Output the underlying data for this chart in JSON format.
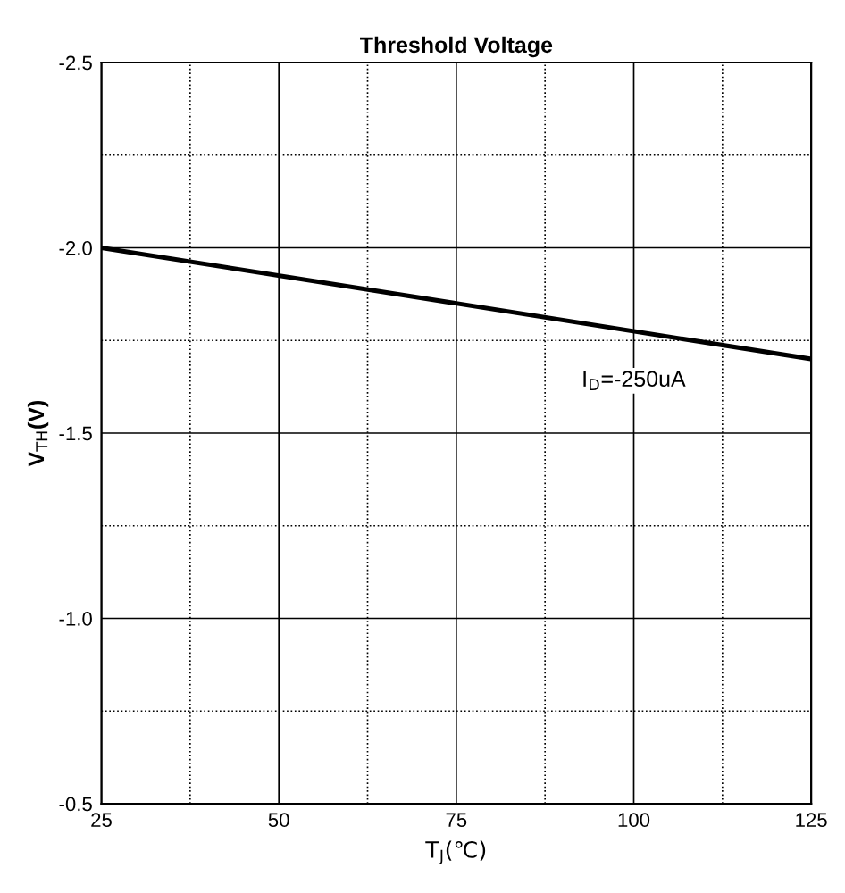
{
  "chart_data": {
    "type": "line",
    "title": "Threshold Voltage",
    "xlabel": "T$_{J}$(℃)",
    "ylabel": "V$_{TH}$(V)",
    "x": [
      25,
      125
    ],
    "series": [
      {
        "name": "I$_{D}$=-250uA",
        "color": "#000000",
        "values": [
          -2.0,
          -1.7
        ]
      }
    ],
    "xlim": [
      25,
      125
    ],
    "xticks": [
      25,
      {
        "value": 37.5,
        "label": null
      },
      50,
      {
        "value": 62.5,
        "label": null
      },
      75,
      {
        "value": 87.5,
        "label": null
      },
      100,
      {
        "value": 112.5,
        "label": null
      },
      125
    ],
    "ylim": [
      -0.5,
      -2.5
    ],
    "yticks": [
      {
        "value": -2.5,
        "label": "-2.5"
      },
      {
        "value": -2.25,
        "label": null
      },
      {
        "value": -2.0,
        "label": "-2.0"
      },
      {
        "value": -1.75,
        "label": null
      },
      {
        "value": -1.5,
        "label": "-1.5"
      },
      {
        "value": -1.25,
        "label": null
      },
      {
        "value": -1.0,
        "label": "-1.0"
      },
      {
        "value": -0.75,
        "label": null
      },
      {
        "value": -0.5,
        "label": "-0.5"
      }
    ],
    "grid": true,
    "line_style": "solid",
    "marker": "none"
  }
}
